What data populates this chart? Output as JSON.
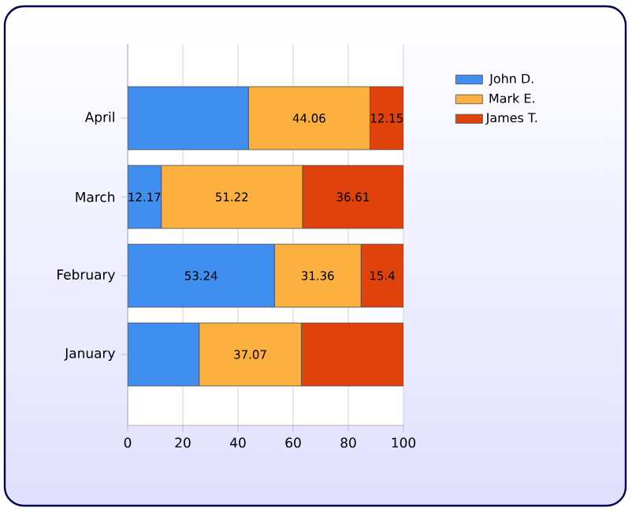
{
  "chart_data": {
    "type": "bar",
    "orientation": "horizontal",
    "stacked": true,
    "categories": [
      "April",
      "March",
      "February",
      "January"
    ],
    "series": [
      {
        "name": "John D.",
        "color": "#3f8ef0",
        "values": [
          43.79,
          12.17,
          53.24,
          25.9
        ],
        "value_labels": [
          null,
          "12.17",
          "53.24",
          null
        ]
      },
      {
        "name": "Mark E.",
        "color": "#fbb040",
        "values": [
          44.06,
          51.22,
          31.36,
          37.07
        ],
        "value_labels": [
          "44.06",
          "51.22",
          "31.36",
          "37.07"
        ]
      },
      {
        "name": "James T.",
        "color": "#e0420c",
        "values": [
          12.15,
          36.61,
          15.4,
          37.03
        ],
        "value_labels": [
          "12.15",
          "36.61",
          "15.4",
          null
        ]
      }
    ],
    "xlim": [
      0,
      100
    ],
    "xticks": [
      0,
      20,
      40,
      60,
      80,
      100
    ],
    "grid": "x",
    "legend": "top right"
  }
}
